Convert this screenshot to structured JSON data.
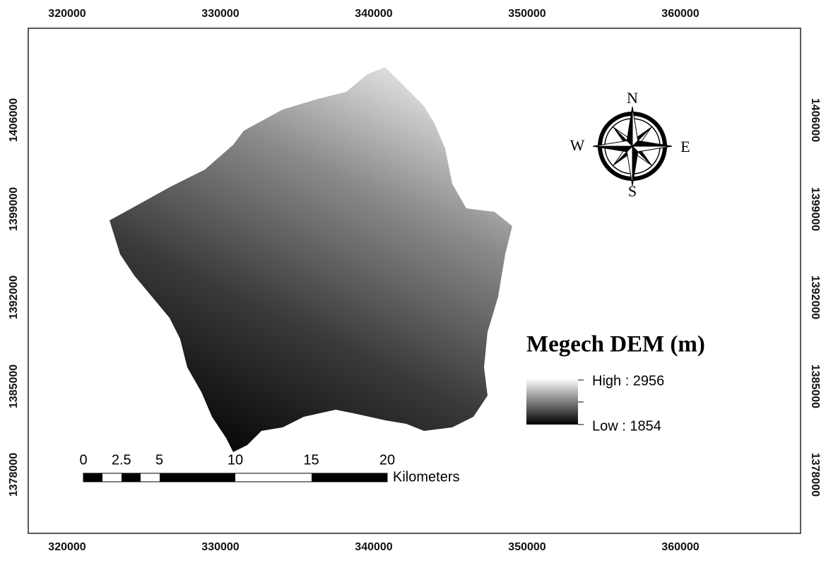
{
  "x_ticks": [
    "320000",
    "330000",
    "340000",
    "350000",
    "360000"
  ],
  "y_ticks": [
    "1406000",
    "1399000",
    "1392000",
    "1385000",
    "1378000"
  ],
  "compass": {
    "north": "N",
    "south": "S",
    "west": "W",
    "east": "E"
  },
  "legend": {
    "title": "Megech DEM (m)",
    "high": "High : 2956",
    "low": "Low : 1854"
  },
  "scale_bar": {
    "marks": [
      0,
      2.5,
      5,
      10,
      15,
      20
    ],
    "unit": "Kilometers"
  }
}
